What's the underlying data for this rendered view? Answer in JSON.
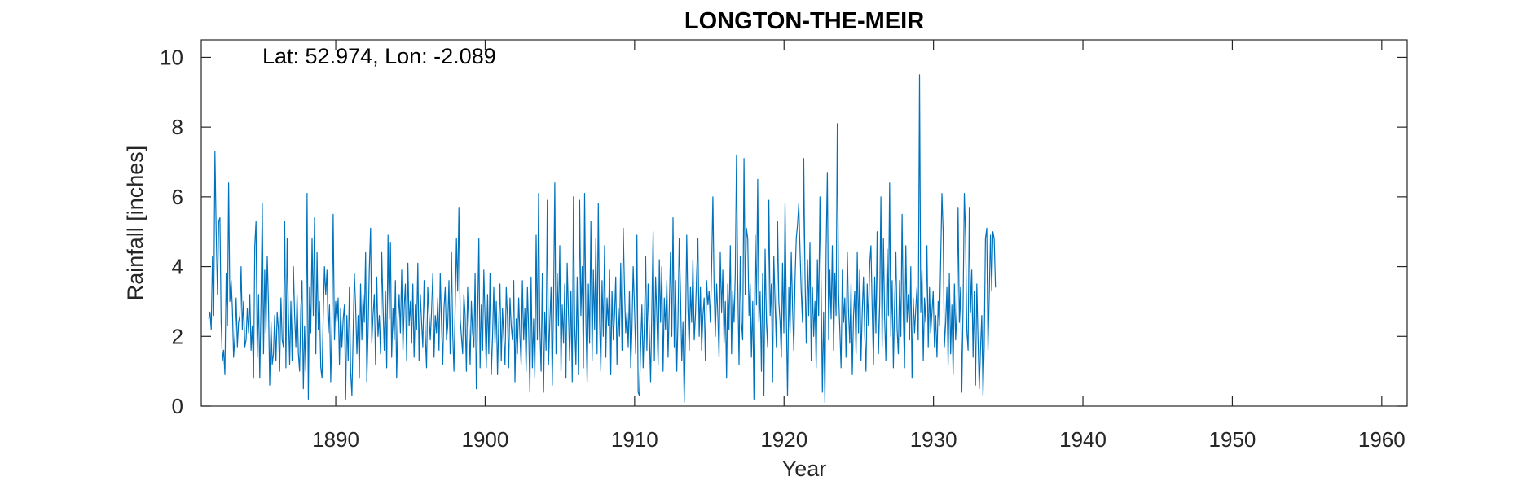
{
  "chart_data": {
    "type": "line",
    "title": "LONGTON-THE-MEIR",
    "annotation": "Lat: 52.974, Lon: -2.089",
    "xlabel": "Year",
    "ylabel": "Rainfall [inches]",
    "xlim": [
      1881,
      1961.7
    ],
    "ylim": [
      0,
      10.5
    ],
    "x_ticks": [
      1890,
      1900,
      1910,
      1920,
      1930,
      1940,
      1950,
      1960
    ],
    "y_ticks": [
      0,
      2,
      4,
      6,
      8,
      10
    ],
    "x_start": 1881.5,
    "step": 0.0833,
    "grid": false,
    "legend": "none",
    "series": [
      {
        "color": "#0072BD",
        "values": [
          2.5,
          2.7,
          2.2,
          4.3,
          2.6,
          7.3,
          5.0,
          3.2,
          5.3,
          5.4,
          2.4,
          1.3,
          1.6,
          0.9,
          3.8,
          2.3,
          6.4,
          3.0,
          3.6,
          2.8,
          1.4,
          2.0,
          3.1,
          1.7,
          2.4,
          2.6,
          4.0,
          2.2,
          3.0,
          1.7,
          1.9,
          2.8,
          2.1,
          3.2,
          1.6,
          2.3,
          0.8,
          4.6,
          5.3,
          1.4,
          3.2,
          0.8,
          2.9,
          5.8,
          1.5,
          3.9,
          2.1,
          4.3,
          2.9,
          0.6,
          2.4,
          1.2,
          1.5,
          2.6,
          1.3,
          2.7,
          2.2,
          1.0,
          3.1,
          1.9,
          1.7,
          5.3,
          1.1,
          4.8,
          2.7,
          1.2,
          3.0,
          1.3,
          4.0,
          2.6,
          1.7,
          3.2,
          1.5,
          1.0,
          2.8,
          3.6,
          0.5,
          2.3,
          1.0,
          6.1,
          0.2,
          3.4,
          2.1,
          4.8,
          2.6,
          5.4,
          1.5,
          4.4,
          2.2,
          3.0,
          1.1,
          0.8,
          2.6,
          4.0,
          3.2,
          3.9,
          2.1,
          2.9,
          0.7,
          2.3,
          5.5,
          1.9,
          3.0,
          2.4,
          3.1,
          1.2,
          2.8,
          1.7,
          2.5,
          2.9,
          0.2,
          2.6,
          1.3,
          3.4,
          1.0,
          0.3,
          2.1,
          3.8,
          2.9,
          1.5,
          2.6,
          0.8,
          3.5,
          1.9,
          3.2,
          2.4,
          4.4,
          0.7,
          2.1,
          3.9,
          5.1,
          1.8,
          2.6,
          3.2,
          1.2,
          3.7,
          2.0,
          2.6,
          1.5,
          4.4,
          2.9,
          1.6,
          3.3,
          1.1,
          4.9,
          2.5,
          4.7,
          1.4,
          2.8,
          1.9,
          3.6,
          0.8,
          2.5,
          3.2,
          2.1,
          3.9,
          1.6,
          2.8,
          3.5,
          1.3,
          4.1,
          2.3,
          3.0,
          1.8,
          3.5,
          1.4,
          2.9,
          2.2,
          4.1,
          1.3,
          3.2,
          2.4,
          1.7,
          3.6,
          2.0,
          1.1,
          3.4,
          2.6,
          1.9,
          2.7,
          3.8,
          1.4,
          2.6,
          2.1,
          3.1,
          1.6,
          3.8,
          2.4,
          1.2,
          2.8,
          3.4,
          1.9,
          2.3,
          3.6,
          1.5,
          4.4,
          2.1,
          1.0,
          2.9,
          4.8,
          3.3,
          5.7,
          2.5,
          2.0,
          1.5,
          3.2,
          2.6,
          1.0,
          3.4,
          2.3,
          1.2,
          3.0,
          2.1,
          1.7,
          3.8,
          0.5,
          2.4,
          4.8,
          1.1,
          2.9,
          1.6,
          3.9,
          2.5,
          1.1,
          3.2,
          1.5,
          3.8,
          0.9,
          2.0,
          3.4,
          1.8,
          3.0,
          0.9,
          2.4,
          3.5,
          1.3,
          2.8,
          2.0,
          1.2,
          3.4,
          2.6,
          1.1,
          3.1,
          2.3,
          1.9,
          3.6,
          0.7,
          2.5,
          1.5,
          3.1,
          2.0,
          1.2,
          3.6,
          1.9,
          2.8,
          1.0,
          3.4,
          2.2,
          0.4,
          3.7,
          1.1,
          2.5,
          0.8,
          4.9,
          1.9,
          6.1,
          2.3,
          1.0,
          3.8,
          0.4,
          2.7,
          1.6,
          5.9,
          1.2,
          2.4,
          3.4,
          0.6,
          2.8,
          6.4,
          1.5,
          3.8,
          2.3,
          4.6,
          1.0,
          2.9,
          1.8,
          3.5,
          0.8,
          4.1,
          2.6,
          1.3,
          3.3,
          0.7,
          6.0,
          2.3,
          1.2,
          3.7,
          0.9,
          5.9,
          2.6,
          4.0,
          1.1,
          6.1,
          2.4,
          0.7,
          3.5,
          1.8,
          5.3,
          1.3,
          3.9,
          2.2,
          4.8,
          1.5,
          5.8,
          2.4,
          1.0,
          3.6,
          2.0,
          4.6,
          1.4,
          3.1,
          2.3,
          3.9,
          0.9,
          3.3,
          1.9,
          2.6,
          3.7,
          1.2,
          2.8,
          2.0,
          4.1,
          1.6,
          5.1,
          3.4,
          2.1,
          2.7,
          1.7,
          3.3,
          1.1,
          2.2,
          4.0,
          2.9,
          1.5,
          4.9,
          0.4,
          0.3,
          1.7,
          2.9,
          1.1,
          2.4,
          4.3,
          1.6,
          3.5,
          2.0,
          0.7,
          2.8,
          5.0,
          1.3,
          3.7,
          2.6,
          1.2,
          4.2,
          2.4,
          4.0,
          1.0,
          3.1,
          2.2,
          3.6,
          1.4,
          2.8,
          4.4,
          2.0,
          5.4,
          1.7,
          3.6,
          1.0,
          2.5,
          4.8,
          3.2,
          1.3,
          2.4,
          0.1,
          2.1,
          4.9,
          2.8,
          1.6,
          3.4,
          2.4,
          4.2,
          1.9,
          2.6,
          3.8,
          4.8,
          2.0,
          3.4,
          1.6,
          2.6,
          3.1,
          1.3,
          3.6,
          2.9,
          3.3,
          2.4,
          4.0,
          6.0,
          3.4,
          2.0,
          3.5,
          2.6,
          1.4,
          4.4,
          2.7,
          3.9,
          1.8,
          3.0,
          0.8,
          3.5,
          2.2,
          4.6,
          1.5,
          3.3,
          2.4,
          3.8,
          7.2,
          3.6,
          1.2,
          4.3,
          2.4,
          1.9,
          7.1,
          3.2,
          5.1,
          4.8,
          2.6,
          3.5,
          1.4,
          3.0,
          0.2,
          4.9,
          2.9,
          6.5,
          2.4,
          3.3,
          1.0,
          3.8,
          0.3,
          4.5,
          2.4,
          1.7,
          5.9,
          2.6,
          3.5,
          0.7,
          4.3,
          2.9,
          1.7,
          5.3,
          3.0,
          2.4,
          1.4,
          4.1,
          2.1,
          5.8,
          2.7,
          0.3,
          3.4,
          2.1,
          4.4,
          2.8,
          1.6,
          3.6,
          4.8,
          5.2,
          5.8,
          4.5,
          3.3,
          2.4,
          7.1,
          3.8,
          1.8,
          4.2,
          2.6,
          4.7,
          1.3,
          3.4,
          2.0,
          3.0,
          1.1,
          4.2,
          2.6,
          6.0,
          3.3,
          0.4,
          2.7,
          0.1,
          4.5,
          6.7,
          1.9,
          3.9,
          2.5,
          4.6,
          1.6,
          3.8,
          2.6,
          8.1,
          3.2,
          2.2,
          1.1,
          3.9,
          2.4,
          3.1,
          1.4,
          4.4,
          2.7,
          1.8,
          3.5,
          0.9,
          2.6,
          3.3,
          1.5,
          4.4,
          2.1,
          3.9,
          1.3,
          2.7,
          3.7,
          2.0,
          1.0,
          3.5,
          2.3,
          4.1,
          4.6,
          2.8,
          1.2,
          3.7,
          2.1,
          5.0,
          1.5,
          2.9,
          6.0,
          1.7,
          4.8,
          2.5,
          1.3,
          4.5,
          2.6,
          6.4,
          2.0,
          3.6,
          1.1,
          2.9,
          4.4,
          2.2,
          1.5,
          3.6,
          2.0,
          5.5,
          2.6,
          1.1,
          4.6,
          2.4,
          3.2,
          1.9,
          4.0,
          0.8,
          3.1,
          2.1,
          2.8,
          3.4,
          1.9,
          9.5,
          2.7,
          3.9,
          1.3,
          3.1,
          2.4,
          4.6,
          1.7,
          3.4,
          2.1,
          2.7,
          3.3,
          1.7,
          2.6,
          1.4,
          3.0,
          2.3,
          4.1,
          6.1,
          5.0,
          1.7,
          2.4,
          3.4,
          1.2,
          3.8,
          1.5,
          2.9,
          0.9,
          3.5,
          1.9,
          2.7,
          5.7,
          2.4,
          3.4,
          0.4,
          2.8,
          6.1,
          4.9,
          2.2,
          1.6,
          5.7,
          2.7,
          3.9,
          1.4,
          3.3,
          0.6,
          3.5,
          1.9,
          0.5,
          1.6,
          2.6,
          0.3,
          1.7,
          4.8,
          5.1,
          1.6,
          3.1,
          4.9,
          3.3,
          5.0,
          4.8,
          3.4
        ]
      }
    ]
  }
}
